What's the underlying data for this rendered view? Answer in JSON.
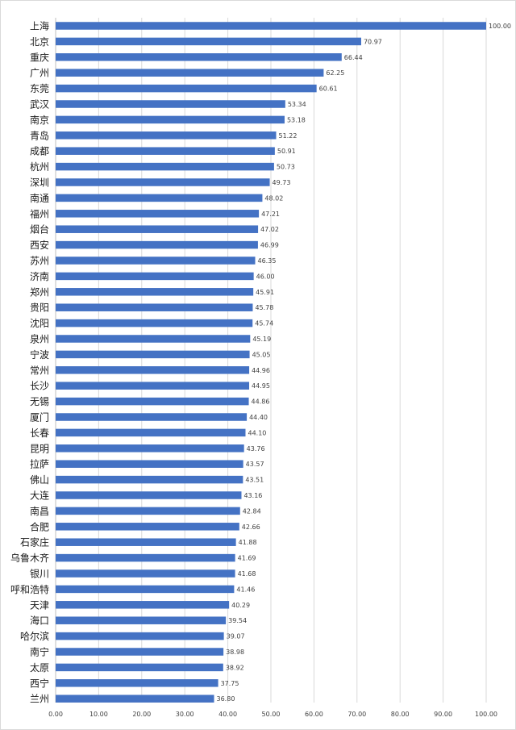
{
  "chart_data": {
    "type": "bar",
    "orientation": "horizontal",
    "title": "",
    "xlabel": "",
    "ylabel": "",
    "xlim": [
      0,
      100
    ],
    "x_ticks": [
      "0.00",
      "10.00",
      "20.00",
      "30.00",
      "40.00",
      "50.00",
      "60.00",
      "70.00",
      "80.00",
      "90.00",
      "100.00"
    ],
    "grid": true,
    "bar_color": "#4472C4",
    "categories": [
      "上海",
      "北京",
      "重庆",
      "广州",
      "东莞",
      "武汉",
      "南京",
      "青岛",
      "成都",
      "杭州",
      "深圳",
      "南通",
      "福州",
      "烟台",
      "西安",
      "苏州",
      "济南",
      "郑州",
      "贵阳",
      "沈阳",
      "泉州",
      "宁波",
      "常州",
      "长沙",
      "无锡",
      "厦门",
      "长春",
      "昆明",
      "拉萨",
      "佛山",
      "大连",
      "南昌",
      "合肥",
      "石家庄",
      "乌鲁木齐",
      "银川",
      "呼和浩特",
      "天津",
      "海口",
      "哈尔滨",
      "南宁",
      "太原",
      "西宁",
      "兰州"
    ],
    "values": [
      100.0,
      70.97,
      66.44,
      62.25,
      60.61,
      53.34,
      53.18,
      51.22,
      50.91,
      50.73,
      49.73,
      48.02,
      47.21,
      47.02,
      46.99,
      46.35,
      46.0,
      45.91,
      45.78,
      45.74,
      45.19,
      45.05,
      44.96,
      44.95,
      44.86,
      44.4,
      44.1,
      43.76,
      43.57,
      43.51,
      43.16,
      42.84,
      42.66,
      41.88,
      41.69,
      41.68,
      41.46,
      40.29,
      39.54,
      39.07,
      38.98,
      38.92,
      37.75,
      36.8
    ],
    "value_labels": [
      "100.00",
      "70.97",
      "66.44",
      "62.25",
      "60.61",
      "53.34",
      "53.18",
      "51.22",
      "50.91",
      "50.73",
      "49.73",
      "48.02",
      "47.21",
      "47.02",
      "46.99",
      "46.35",
      "46.00",
      "45.91",
      "45.78",
      "45.74",
      "45.19",
      "45.05",
      "44.96",
      "44.95",
      "44.86",
      "44.40",
      "44.10",
      "43.76",
      "43.57",
      "43.51",
      "43.16",
      "42.84",
      "42.66",
      "41.88",
      "41.69",
      "41.68",
      "41.46",
      "40.29",
      "39.54",
      "39.07",
      "38.98",
      "38.92",
      "37.75",
      "36.80"
    ]
  }
}
